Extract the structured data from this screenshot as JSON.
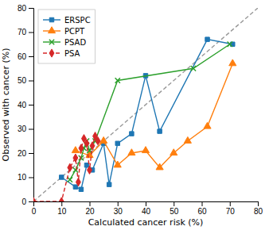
{
  "chart_data": {
    "type": "line",
    "xlabel": "Calculated cancer risk (%)",
    "ylabel": "Observed with cancer (%)",
    "xlim": [
      0,
      80
    ],
    "ylim": [
      0,
      80
    ],
    "xticks": [
      0,
      10,
      20,
      30,
      40,
      50,
      60,
      70,
      80
    ],
    "yticks": [
      0,
      10,
      20,
      30,
      40,
      50,
      60,
      70,
      80
    ],
    "legend": "upper left",
    "series": [
      {
        "x": [
          0,
          80
        ],
        "values": [
          0,
          80
        ],
        "color": "#999999",
        "line_style": "dashed"
      },
      {
        "name": "ERSPC",
        "x": [
          10,
          15,
          17,
          19,
          21,
          25,
          27,
          30,
          35,
          40,
          45,
          62,
          71
        ],
        "values": [
          10,
          6,
          5,
          15,
          13,
          24,
          7,
          24,
          28,
          52,
          29,
          67,
          65
        ],
        "marker": "square",
        "line_style": "solid"
      },
      {
        "name": "PCPT",
        "x": [
          15,
          20,
          25,
          30,
          35,
          40,
          45,
          50,
          55,
          62,
          71
        ],
        "values": [
          21,
          19,
          25,
          15,
          20,
          21,
          14,
          20,
          25,
          31,
          57
        ],
        "marker": "triangle",
        "line_style": "solid"
      },
      {
        "name": "PSAD",
        "x": [
          13,
          15,
          17,
          18,
          19,
          20,
          22,
          30,
          57,
          70
        ],
        "values": [
          9,
          13,
          18,
          22,
          25,
          21,
          25,
          50,
          55,
          65
        ],
        "marker": "x",
        "line_style": "solid"
      },
      {
        "name": "PSA",
        "x": [
          0,
          10,
          13,
          15,
          16,
          17,
          18,
          19,
          20,
          21,
          22,
          23
        ],
        "values": [
          0,
          0,
          14,
          18,
          8,
          22,
          26,
          24,
          13,
          23,
          27,
          25
        ],
        "marker": "diamond",
        "line_style": "dashed"
      }
    ]
  }
}
